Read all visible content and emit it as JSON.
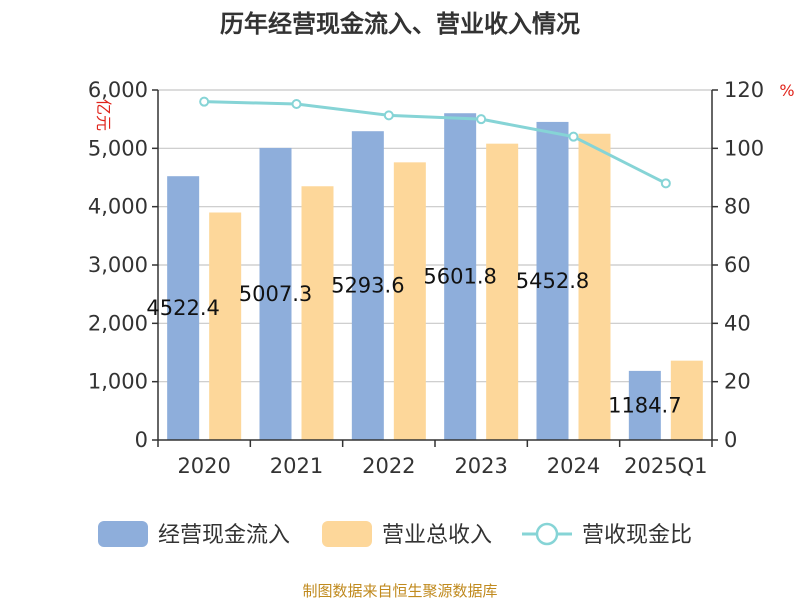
{
  "chart_data": {
    "type": "bar+line",
    "title": "历年经营现金流入、营业收入情况",
    "categories": [
      "2020",
      "2021",
      "2022",
      "2023",
      "2024",
      "2025Q1"
    ],
    "series": [
      {
        "name": "经营现金流入",
        "type": "bar",
        "axis": "left",
        "color": "#8eaedb",
        "values": [
          4522.4,
          5007.3,
          5293.6,
          5601.8,
          5452.8,
          1184.7
        ]
      },
      {
        "name": "营业总收入",
        "type": "bar",
        "axis": "left",
        "color": "#fdd79a",
        "values": [
          3900,
          4350,
          4760,
          5080,
          5250,
          1360
        ]
      },
      {
        "name": "营收现金比",
        "type": "line",
        "axis": "right",
        "color": "#86d4d6",
        "values": [
          116,
          115.2,
          111.3,
          110,
          104,
          88
        ]
      }
    ],
    "data_labels": [
      "4522.4",
      "5007.3",
      "5293.6",
      "5601.8",
      "5452.8",
      "1184.7"
    ],
    "ylabel_left": "亿元",
    "ylabel_right": "%",
    "ylim_left": [
      0,
      6000
    ],
    "ylim_right": [
      0,
      120
    ],
    "yticks_left": [
      "0",
      "1,000",
      "2,000",
      "3,000",
      "4,000",
      "5,000",
      "6,000"
    ],
    "yticks_right": [
      "0",
      "20",
      "40",
      "60",
      "80",
      "100",
      "120"
    ],
    "grid": true,
    "legend_position": "bottom"
  },
  "source": "制图数据来自恒生聚源数据库"
}
